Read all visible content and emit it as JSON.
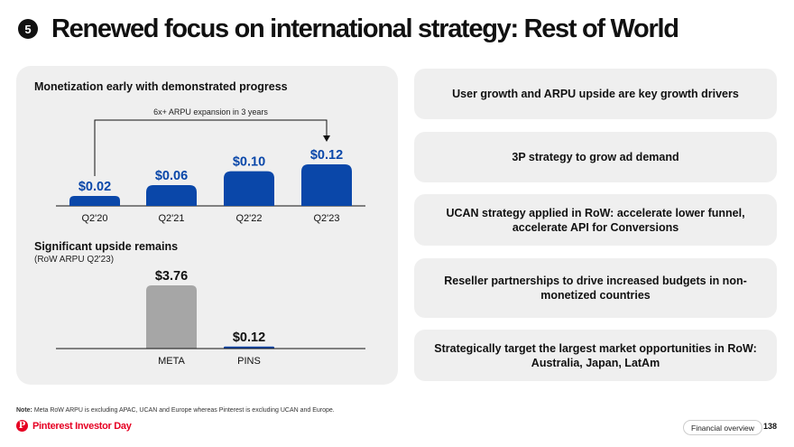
{
  "header": {
    "badge": "5",
    "title": "Renewed focus on international strategy: Rest of World"
  },
  "left": {
    "section1_title": "Monetization early with demonstrated progress",
    "section2_title": "Significant upside remains",
    "section2_subtitle": "(RoW ARPU Q2'23)"
  },
  "right_boxes": [
    "User growth and ARPU upside are key growth drivers",
    "3P strategy to grow ad demand",
    "UCAN strategy applied in RoW: accelerate lower funnel, accelerate API for Conversions",
    "Reseller partnerships to drive increased budgets in non-monetized countries",
    "Strategically target the largest market opportunities in RoW: Australia, Japan, LatAm"
  ],
  "footer": {
    "note_bold": "Note:",
    "note_text": " Meta RoW ARPU is excluding APAC, UCAN and Europe whereas Pinterest is excluding UCAN and Europe.",
    "brand": "Pinterest Investor Day",
    "section": "Financial overview",
    "page": "138"
  },
  "colors": {
    "brand_red": "#e60023",
    "bar_blue": "#0a47a9",
    "bar_gray": "#a6a6a6"
  },
  "chart_data": [
    {
      "type": "bar",
      "title": "Monetization early with demonstrated progress",
      "categories": [
        "Q2'20",
        "Q2'21",
        "Q2'22",
        "Q2'23"
      ],
      "values": [
        0.02,
        0.06,
        0.1,
        0.12
      ],
      "labels": [
        "$0.02",
        "$0.06",
        "$0.10",
        "$0.12"
      ],
      "annotation": "6x+ ARPU expansion in 3 years",
      "ylim": [
        0,
        0.12
      ],
      "color": "#0a47a9",
      "grid": false
    },
    {
      "type": "bar",
      "title": "Significant upside remains",
      "subtitle": "(RoW ARPU Q2'23)",
      "categories": [
        "META",
        "PINS"
      ],
      "values": [
        3.76,
        0.12
      ],
      "labels": [
        "$3.76",
        "$0.12"
      ],
      "ylim": [
        0,
        3.76
      ],
      "colors": [
        "#a6a6a6",
        "#0a47a9"
      ],
      "grid": false
    }
  ]
}
